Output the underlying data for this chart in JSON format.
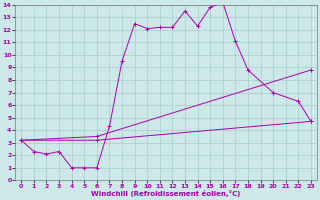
{
  "xlabel": "Windchill (Refroidissement éolien,°C)",
  "background_color": "#cce8e8",
  "grid_color": "#aacccc",
  "line_color": "#aa00aa",
  "xlim": [
    -0.5,
    23.5
  ],
  "ylim": [
    0,
    14
  ],
  "xticks": [
    0,
    1,
    2,
    3,
    4,
    5,
    6,
    7,
    8,
    9,
    10,
    11,
    12,
    13,
    14,
    15,
    16,
    17,
    18,
    19,
    20,
    21,
    22,
    23
  ],
  "yticks": [
    0,
    1,
    2,
    3,
    4,
    5,
    6,
    7,
    8,
    9,
    10,
    11,
    12,
    13,
    14
  ],
  "line1_x": [
    0,
    1,
    2,
    3,
    4,
    5,
    6,
    7,
    8,
    9,
    10,
    11,
    12,
    13,
    14,
    15,
    16,
    17,
    18,
    20,
    22,
    23
  ],
  "line1_y": [
    3.2,
    2.3,
    2.1,
    2.3,
    1.0,
    1.0,
    1.0,
    4.3,
    9.5,
    12.5,
    12.1,
    12.2,
    12.2,
    13.5,
    12.3,
    13.8,
    14.2,
    11.1,
    8.8,
    7.0,
    6.3,
    4.7
  ],
  "line2_x": [
    0,
    6,
    23
  ],
  "line2_y": [
    3.2,
    3.5,
    8.8
  ],
  "line3_x": [
    0,
    6,
    23
  ],
  "line3_y": [
    3.2,
    3.2,
    4.7
  ],
  "xlabel_fontsize": 5,
  "tick_fontsize": 4.5
}
